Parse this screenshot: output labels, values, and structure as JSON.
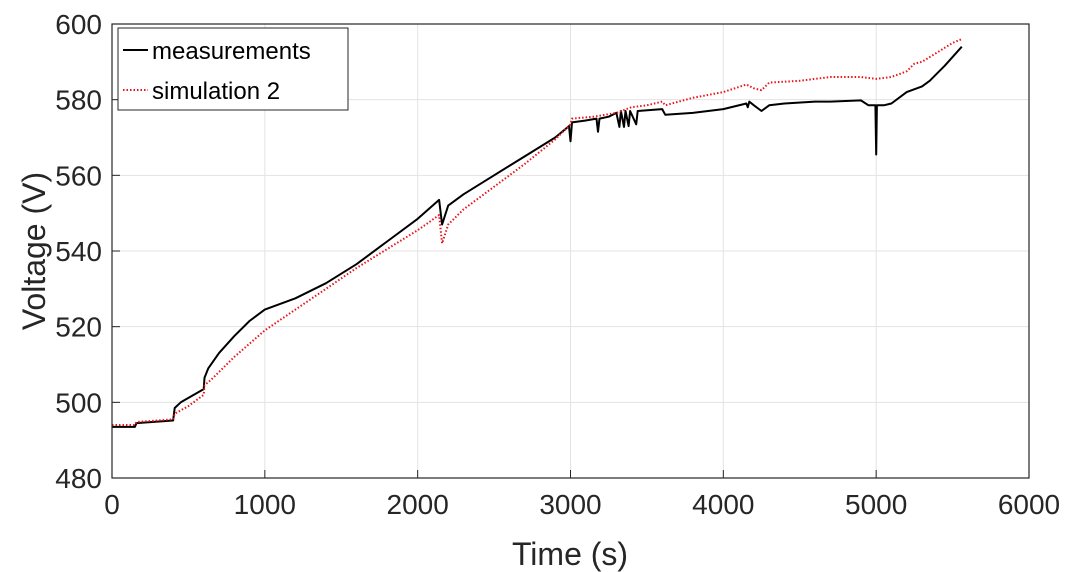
{
  "chart_data": {
    "type": "line",
    "title": "",
    "xlabel": "Time (s)",
    "ylabel": "Voltage (V)",
    "xlim": [
      0,
      6000
    ],
    "ylim": [
      480,
      600
    ],
    "xticks": [
      0,
      1000,
      2000,
      3000,
      4000,
      5000,
      6000
    ],
    "yticks": [
      480,
      500,
      520,
      540,
      560,
      580,
      600
    ],
    "xtick_labels": [
      "0",
      "1000",
      "2000",
      "3000",
      "4000",
      "5000",
      "6000"
    ],
    "ytick_labels": [
      "480",
      "500",
      "520",
      "540",
      "560",
      "580",
      "600"
    ],
    "grid": true,
    "legend_position": "top-left",
    "series": [
      {
        "name": "measurements",
        "color": "#000000",
        "style": "solid",
        "points": [
          [
            0,
            493.5
          ],
          [
            150,
            493.5
          ],
          [
            160,
            494.5
          ],
          [
            400,
            495.2
          ],
          [
            410,
            498.5
          ],
          [
            450,
            500.0
          ],
          [
            600,
            503.5
          ],
          [
            605,
            506.5
          ],
          [
            630,
            509.0
          ],
          [
            700,
            513.0
          ],
          [
            800,
            517.5
          ],
          [
            900,
            521.5
          ],
          [
            1000,
            524.5
          ],
          [
            1200,
            527.5
          ],
          [
            1400,
            531.5
          ],
          [
            1600,
            536.5
          ],
          [
            1800,
            542.5
          ],
          [
            2000,
            548.5
          ],
          [
            2140,
            553.5
          ],
          [
            2160,
            547.0
          ],
          [
            2200,
            552.0
          ],
          [
            2300,
            555.0
          ],
          [
            2500,
            560.0
          ],
          [
            2700,
            565.0
          ],
          [
            2900,
            570.0
          ],
          [
            2990,
            573.0
          ],
          [
            3000,
            569.0
          ],
          [
            3010,
            574.0
          ],
          [
            3100,
            574.5
          ],
          [
            3170,
            575.0
          ],
          [
            3180,
            571.5
          ],
          [
            3190,
            575.0
          ],
          [
            3250,
            575.5
          ],
          [
            3300,
            576.5
          ],
          [
            3320,
            572.8
          ],
          [
            3330,
            577.0
          ],
          [
            3350,
            572.8
          ],
          [
            3360,
            577.0
          ],
          [
            3380,
            573.0
          ],
          [
            3390,
            577.0
          ],
          [
            3430,
            573.5
          ],
          [
            3440,
            577.0
          ],
          [
            3600,
            577.5
          ],
          [
            3620,
            576.0
          ],
          [
            3800,
            576.5
          ],
          [
            4000,
            577.5
          ],
          [
            4150,
            579.0
          ],
          [
            4160,
            578.0
          ],
          [
            4170,
            579.5
          ],
          [
            4200,
            578.5
          ],
          [
            4250,
            577.0
          ],
          [
            4300,
            578.5
          ],
          [
            4400,
            579.0
          ],
          [
            4600,
            579.5
          ],
          [
            4700,
            579.5
          ],
          [
            4900,
            579.8
          ],
          [
            4950,
            578.5
          ],
          [
            4995,
            578.5
          ],
          [
            5000,
            565.5
          ],
          [
            5005,
            578.5
          ],
          [
            5050,
            578.5
          ],
          [
            5100,
            579.0
          ],
          [
            5200,
            582.0
          ],
          [
            5300,
            583.5
          ],
          [
            5350,
            585.0
          ],
          [
            5450,
            589.0
          ],
          [
            5560,
            594.0
          ]
        ]
      },
      {
        "name": "simulation 2",
        "color": "#e8151b",
        "style": "dotted",
        "points": [
          [
            0,
            494.0
          ],
          [
            150,
            494.0
          ],
          [
            160,
            494.8
          ],
          [
            400,
            495.5
          ],
          [
            410,
            497.0
          ],
          [
            500,
            499.0
          ],
          [
            600,
            502.0
          ],
          [
            605,
            504.5
          ],
          [
            650,
            506.0
          ],
          [
            800,
            512.0
          ],
          [
            1000,
            519.0
          ],
          [
            1200,
            524.5
          ],
          [
            1400,
            530.0
          ],
          [
            1600,
            535.5
          ],
          [
            1800,
            540.5
          ],
          [
            2000,
            545.5
          ],
          [
            2140,
            549.5
          ],
          [
            2160,
            542.0
          ],
          [
            2200,
            547.0
          ],
          [
            2300,
            551.0
          ],
          [
            2500,
            557.0
          ],
          [
            2700,
            563.0
          ],
          [
            2900,
            569.5
          ],
          [
            3000,
            573.5
          ],
          [
            3010,
            575.0
          ],
          [
            3150,
            575.5
          ],
          [
            3300,
            576.5
          ],
          [
            3400,
            578.0
          ],
          [
            3500,
            578.5
          ],
          [
            3600,
            579.5
          ],
          [
            3620,
            578.5
          ],
          [
            3800,
            580.5
          ],
          [
            4000,
            582.0
          ],
          [
            4150,
            584.0
          ],
          [
            4200,
            583.0
          ],
          [
            4250,
            582.5
          ],
          [
            4300,
            584.5
          ],
          [
            4500,
            585.0
          ],
          [
            4600,
            585.5
          ],
          [
            4700,
            586.0
          ],
          [
            4900,
            586.0
          ],
          [
            5000,
            585.5
          ],
          [
            5100,
            586.0
          ],
          [
            5200,
            587.5
          ],
          [
            5250,
            589.5
          ],
          [
            5300,
            590.0
          ],
          [
            5400,
            592.5
          ],
          [
            5500,
            595.0
          ],
          [
            5560,
            596.0
          ]
        ]
      }
    ]
  }
}
